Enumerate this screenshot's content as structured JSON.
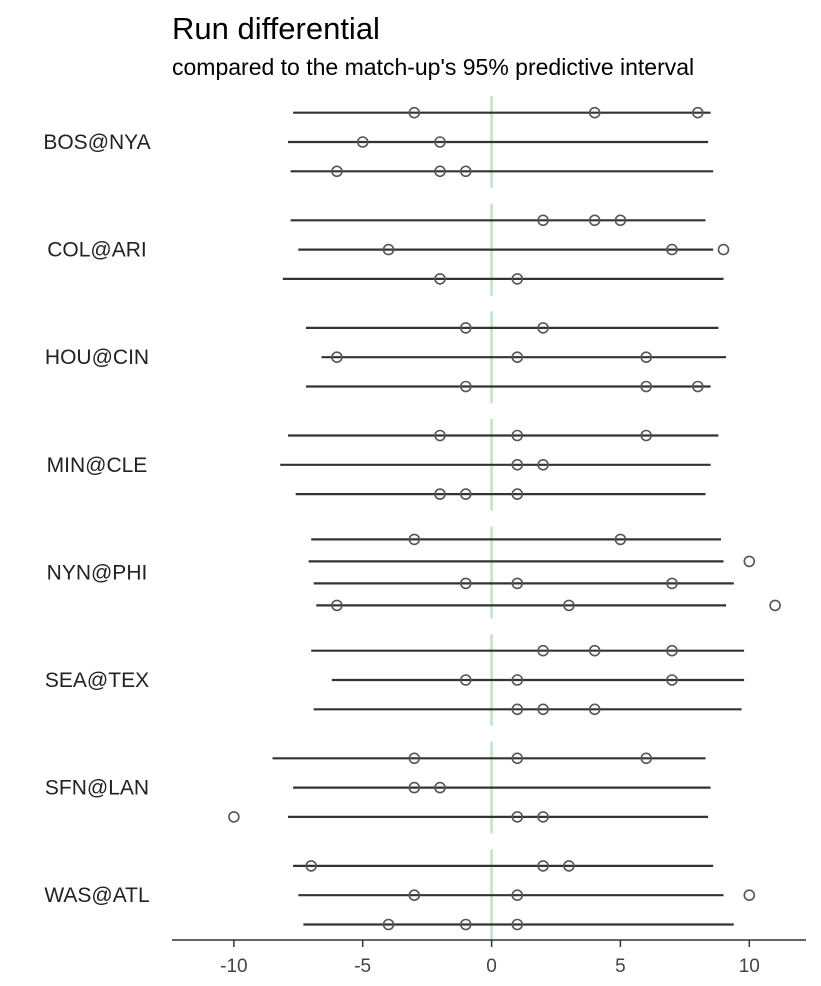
{
  "chart_data": {
    "type": "dot-interval",
    "title": "Run differential",
    "subtitle": "compared to the match-up's 95% predictive interval",
    "xlim": [
      -12.4,
      12.2
    ],
    "xticks": [
      -10,
      -5,
      0,
      5,
      10
    ],
    "xtick_labels": [
      "-10",
      "-5",
      "0",
      "5",
      "10"
    ],
    "reference_line": 0,
    "colors": {
      "interval": "#333333",
      "point": "#555555",
      "reference": "#bfe3c7",
      "axis": "#333333"
    },
    "groups": [
      {
        "label": "BOS@NYA",
        "rows": [
          {
            "lo": -7.7,
            "hi": 8.5,
            "points": [
              -3,
              4,
              8
            ]
          },
          {
            "lo": -7.9,
            "hi": 8.4,
            "points": [
              -5,
              -2
            ]
          },
          {
            "lo": -7.8,
            "hi": 8.6,
            "points": [
              -6,
              -2,
              -1
            ]
          }
        ]
      },
      {
        "label": "COL@ARI",
        "rows": [
          {
            "lo": -7.8,
            "hi": 8.3,
            "points": [
              2,
              4,
              5
            ]
          },
          {
            "lo": -7.5,
            "hi": 8.6,
            "points": [
              -4,
              7,
              9
            ]
          },
          {
            "lo": -8.1,
            "hi": 9.0,
            "points": [
              -2,
              1
            ]
          }
        ]
      },
      {
        "label": "HOU@CIN",
        "rows": [
          {
            "lo": -7.2,
            "hi": 8.8,
            "points": [
              -1,
              2
            ]
          },
          {
            "lo": -6.6,
            "hi": 9.1,
            "points": [
              -6,
              1,
              6
            ]
          },
          {
            "lo": -7.2,
            "hi": 8.5,
            "points": [
              -1,
              6,
              8
            ]
          }
        ]
      },
      {
        "label": "MIN@CLE",
        "rows": [
          {
            "lo": -7.9,
            "hi": 8.8,
            "points": [
              -2,
              1,
              6
            ]
          },
          {
            "lo": -8.2,
            "hi": 8.5,
            "points": [
              1,
              2
            ]
          },
          {
            "lo": -7.6,
            "hi": 8.3,
            "points": [
              -2,
              -1,
              1
            ]
          }
        ]
      },
      {
        "label": "NYN@PHI",
        "rows": [
          {
            "lo": -7.0,
            "hi": 8.9,
            "points": [
              -3,
              5
            ]
          },
          {
            "lo": -7.1,
            "hi": 9.0,
            "points": [
              10
            ]
          },
          {
            "lo": -6.9,
            "hi": 9.4,
            "points": [
              -1,
              1,
              7
            ]
          },
          {
            "lo": -6.8,
            "hi": 9.1,
            "points": [
              -6,
              3,
              11
            ]
          }
        ]
      },
      {
        "label": "SEA@TEX",
        "rows": [
          {
            "lo": -7.0,
            "hi": 9.8,
            "points": [
              2,
              4,
              7
            ]
          },
          {
            "lo": -6.2,
            "hi": 9.8,
            "points": [
              -1,
              1,
              7
            ]
          },
          {
            "lo": -6.9,
            "hi": 9.7,
            "points": [
              1,
              2,
              4
            ]
          }
        ]
      },
      {
        "label": "SFN@LAN",
        "rows": [
          {
            "lo": -8.5,
            "hi": 8.3,
            "points": [
              -3,
              1,
              6
            ]
          },
          {
            "lo": -7.7,
            "hi": 8.5,
            "points": [
              -3,
              -2
            ]
          },
          {
            "lo": -7.9,
            "hi": 8.4,
            "points": [
              -10,
              1,
              2
            ]
          }
        ]
      },
      {
        "label": "WAS@ATL",
        "rows": [
          {
            "lo": -7.7,
            "hi": 8.6,
            "points": [
              -7,
              2,
              3
            ]
          },
          {
            "lo": -7.5,
            "hi": 9.0,
            "points": [
              -3,
              1,
              10
            ]
          },
          {
            "lo": -7.3,
            "hi": 9.4,
            "points": [
              -4,
              -1,
              1
            ]
          }
        ]
      }
    ]
  }
}
